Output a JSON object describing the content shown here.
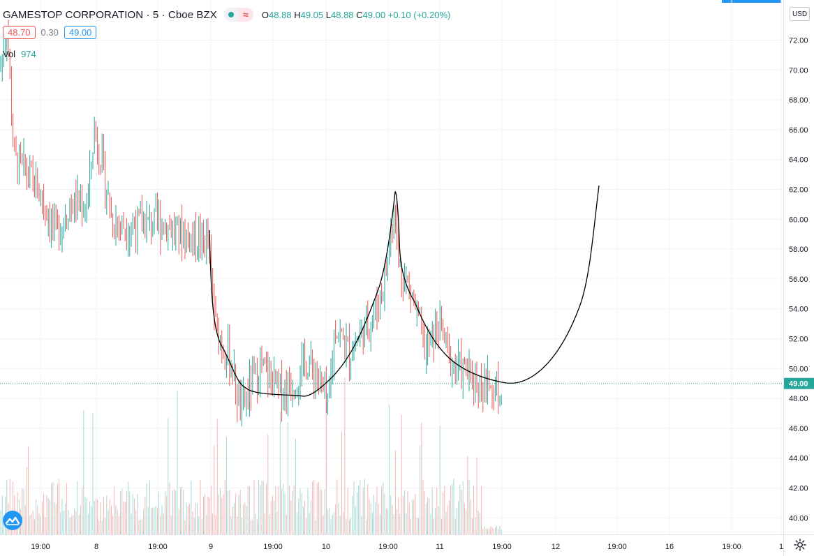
{
  "header": {
    "symbol": "GAMESTOP CORPORATION · 5 · Cboe BZX",
    "status_wave": "≈",
    "ohlc": {
      "o_label": "O",
      "o_value": "48.88",
      "h_label": "H",
      "h_value": "49.05",
      "l_label": "L",
      "l_value": "48.88",
      "c_label": "C",
      "c_value": "49.00",
      "change": "+0.10 (+0.20%)"
    },
    "bid": "48.70",
    "spread": "0.30",
    "ask": "49.00",
    "vol_label": "Vol",
    "vol_value": "974"
  },
  "price_axis": {
    "currency": "USD",
    "ticks": [
      "72.00",
      "70.00",
      "68.00",
      "66.00",
      "64.00",
      "62.00",
      "60.00",
      "58.00",
      "56.00",
      "54.00",
      "52.00",
      "50.00",
      "48.00",
      "46.00",
      "44.00",
      "42.00",
      "40.00"
    ],
    "current_price": "49.00"
  },
  "time_axis": {
    "labels": [
      "19:00",
      "8",
      "19:00",
      "9",
      "19:00",
      "10",
      "19:00",
      "11",
      "19:00",
      "12",
      "19:00",
      "16",
      "19:00",
      "1"
    ]
  },
  "colors": {
    "up": "#26a69a",
    "down": "#ef5350",
    "grid": "#f0f3fa",
    "drawing": "#000000",
    "accent": "#2196f3"
  },
  "icons": {
    "logo": "tradingview-logo-icon",
    "settings": "gear-icon"
  }
}
